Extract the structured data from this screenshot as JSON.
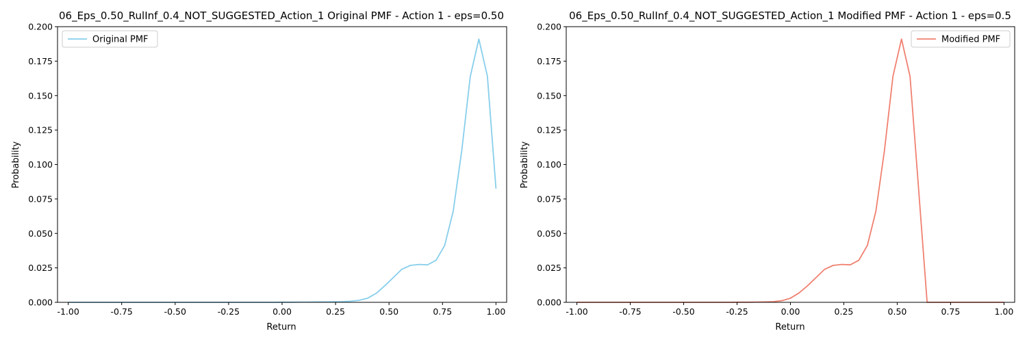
{
  "chart_data": [
    {
      "type": "line",
      "title": "06_Eps_0.50_RulInf_0.4_NOT_SUGGESTED_Action_1 Original PMF - Action 1 - eps=0.50",
      "xlabel": "Return",
      "ylabel": "Probability",
      "xlim": [
        -1.05,
        1.05
      ],
      "ylim": [
        0,
        0.2
      ],
      "xticks": [
        "-1.00",
        "-0.75",
        "-0.50",
        "-0.25",
        "0.00",
        "0.25",
        "0.50",
        "0.75",
        "1.00"
      ],
      "yticks": [
        "0.000",
        "0.025",
        "0.050",
        "0.075",
        "0.100",
        "0.125",
        "0.150",
        "0.175",
        "0.200"
      ],
      "legend_position": "upper-left",
      "grid": false,
      "series": [
        {
          "name": "Original PMF",
          "color": "#87ceeb",
          "x": [
            -1.0,
            -0.96,
            -0.92,
            -0.88,
            -0.84,
            -0.8,
            -0.76,
            -0.72,
            -0.68,
            -0.64,
            -0.6,
            -0.56,
            -0.52,
            -0.48,
            -0.44,
            -0.4,
            -0.36,
            -0.32,
            -0.28,
            -0.24,
            -0.2,
            -0.16,
            -0.12,
            -0.08,
            -0.04,
            0.0,
            0.04,
            0.08,
            0.12,
            0.16,
            0.2,
            0.24,
            0.28,
            0.32,
            0.36,
            0.4,
            0.44,
            0.48,
            0.52,
            0.56,
            0.6,
            0.64,
            0.68,
            0.72,
            0.76,
            0.8,
            0.84,
            0.88,
            0.92,
            0.96,
            1.0
          ],
          "y": [
            0,
            0,
            0,
            0,
            0,
            0,
            0,
            0,
            0,
            0,
            0,
            0,
            0,
            0,
            0,
            0,
            0,
            0,
            0,
            0,
            0,
            0,
            0,
            0,
            0,
            0.0001,
            0.0001,
            0.0002,
            0.0002,
            0.0003,
            0.0003,
            0.0004,
            0.0005,
            0.0008,
            0.0015,
            0.003,
            0.0065,
            0.012,
            0.018,
            0.024,
            0.0268,
            0.0275,
            0.0272,
            0.0305,
            0.0412,
            0.066,
            0.11,
            0.164,
            0.191,
            0.164,
            0.0825
          ]
        }
      ]
    },
    {
      "type": "line",
      "title": "06_Eps_0.50_RulInf_0.4_NOT_SUGGESTED_Action_1 Modified PMF - Action 1 - eps=0.5",
      "xlabel": "Return",
      "ylabel": "Probability",
      "xlim": [
        -1.05,
        1.05
      ],
      "ylim": [
        0,
        0.2
      ],
      "xticks": [
        "-1.00",
        "-0.75",
        "-0.50",
        "-0.25",
        "0.00",
        "0.25",
        "0.50",
        "0.75",
        "1.00"
      ],
      "yticks": [
        "0.000",
        "0.025",
        "0.050",
        "0.075",
        "0.100",
        "0.125",
        "0.150",
        "0.175",
        "0.200"
      ],
      "legend_position": "upper-right",
      "grid": false,
      "series": [
        {
          "name": "Modified PMF",
          "color": "#f08070",
          "x": [
            -1.0,
            -0.96,
            -0.92,
            -0.88,
            -0.84,
            -0.8,
            -0.76,
            -0.72,
            -0.68,
            -0.64,
            -0.6,
            -0.56,
            -0.52,
            -0.48,
            -0.44,
            -0.4,
            -0.36,
            -0.32,
            -0.28,
            -0.24,
            -0.2,
            -0.16,
            -0.12,
            -0.08,
            -0.04,
            0.0,
            0.04,
            0.08,
            0.12,
            0.16,
            0.2,
            0.24,
            0.28,
            0.32,
            0.36,
            0.4,
            0.44,
            0.48,
            0.52,
            0.56,
            0.6,
            0.64,
            0.68,
            0.72,
            0.76,
            0.8,
            0.84,
            0.88,
            0.92,
            0.96,
            1.0
          ],
          "y": [
            0,
            0,
            0,
            0,
            0,
            0,
            0,
            0,
            0,
            0,
            0,
            0,
            0,
            0,
            0,
            0,
            0,
            0,
            0,
            0.0001,
            0.0001,
            0.0002,
            0.0003,
            0.0005,
            0.0012,
            0.003,
            0.0068,
            0.012,
            0.018,
            0.024,
            0.0268,
            0.0275,
            0.0272,
            0.0305,
            0.0412,
            0.066,
            0.11,
            0.164,
            0.191,
            0.164,
            0.0825,
            0,
            0,
            0,
            0,
            0,
            0,
            0,
            0,
            0,
            0
          ]
        }
      ]
    }
  ]
}
